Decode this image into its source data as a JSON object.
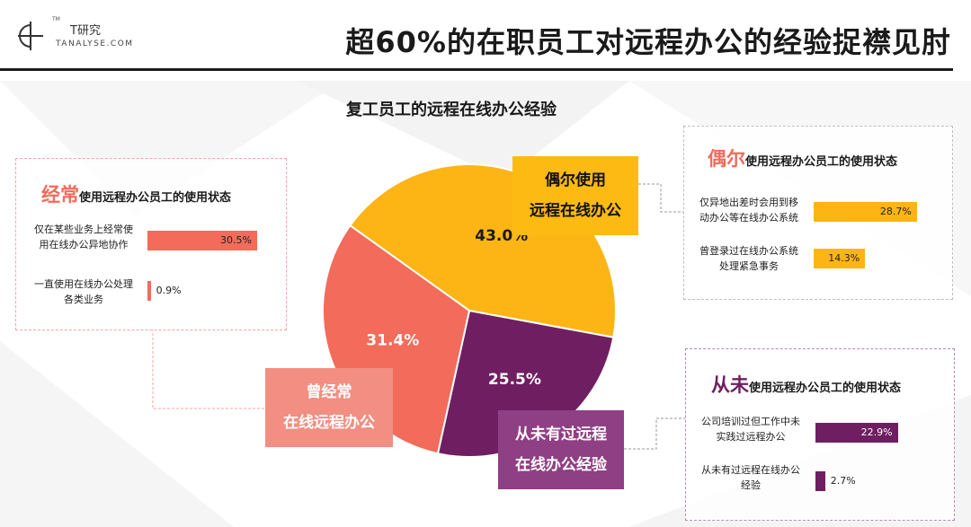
{
  "header": {
    "logo_tm": "TM",
    "logo_name": "T研究",
    "logo_domain": "TANALYSE.COM",
    "title": "超60%的在职员工对远程办公的经验捉襟见肘"
  },
  "colors": {
    "often": "#f26b5b",
    "occasional": "#fdb515",
    "never": "#6f1f61",
    "bar_often": "#f26b5b",
    "bar_occasional": "#fdb515",
    "bar_never": "#6f1f61"
  },
  "chart_data": [
    {
      "type": "pie",
      "title": "复工员工的远程在线办公经验",
      "slices": [
        {
          "name": "偶尔使用远程在线办公",
          "value": 43.0,
          "label": "43.0%"
        },
        {
          "name": "从未有过远程在线办公经验",
          "value": 25.5,
          "label": "25.5%"
        },
        {
          "name": "曾经常在线远程办公",
          "value": 31.4,
          "label": "31.4%"
        }
      ]
    },
    {
      "type": "bar",
      "title": "经常使用远程办公员工的使用状态",
      "categories": [
        "仅在某些业务上经常使用在线办公异地协作",
        "一直使用在线办公处理各类业务"
      ],
      "values": [
        30.5,
        0.9
      ],
      "labels": [
        "30.5%",
        "0.9%"
      ]
    },
    {
      "type": "bar",
      "title": "偶尔使用远程办公员工的使用状态",
      "categories": [
        "仅异地出差时会用到移动办公等在线办公系统",
        "曾登录过在线办公系统处理紧急事务"
      ],
      "values": [
        28.7,
        14.3
      ],
      "labels": [
        "28.7%",
        "14.3%"
      ]
    },
    {
      "type": "bar",
      "title": "从未使用远程办公员工的使用状态",
      "categories": [
        "公司培训过但工作中未实践过远程办公",
        "从未有过远程在线办公经验"
      ],
      "values": [
        22.9,
        2.7
      ],
      "labels": [
        "22.9%",
        "2.7%"
      ]
    }
  ],
  "callouts": {
    "occasional": [
      "偶尔使用",
      "远程在线办公"
    ],
    "often": [
      "曾经常",
      "在线远程办公"
    ],
    "never": [
      "从未有过远程",
      "在线办公经验"
    ]
  },
  "panels": {
    "often": {
      "accent": "经常",
      "rest": "使用远程办公员工的使用状态",
      "rows": [
        {
          "lines": [
            "仅在某些业务上经常使",
            "用在线办公异地协作"
          ]
        },
        {
          "lines": [
            "一直使用在线办公处理",
            "各类业务"
          ]
        }
      ]
    },
    "occasional": {
      "accent": "偶尔",
      "rest": "使用远程办公员工的使用状态",
      "rows": [
        {
          "lines": [
            "仅异地出差时会用到移",
            "动办公等在线办公系统"
          ]
        },
        {
          "lines": [
            "曾登录过在线办公系统",
            "处理紧急事务"
          ]
        }
      ]
    },
    "never": {
      "accent": "从未",
      "rest": "使用远程办公员工的使用状态",
      "rows": [
        {
          "lines": [
            "公司培训过但工作中未",
            "实践过远程办公"
          ]
        },
        {
          "lines": [
            "从未有过远程在线办公",
            "经验"
          ]
        }
      ]
    }
  }
}
